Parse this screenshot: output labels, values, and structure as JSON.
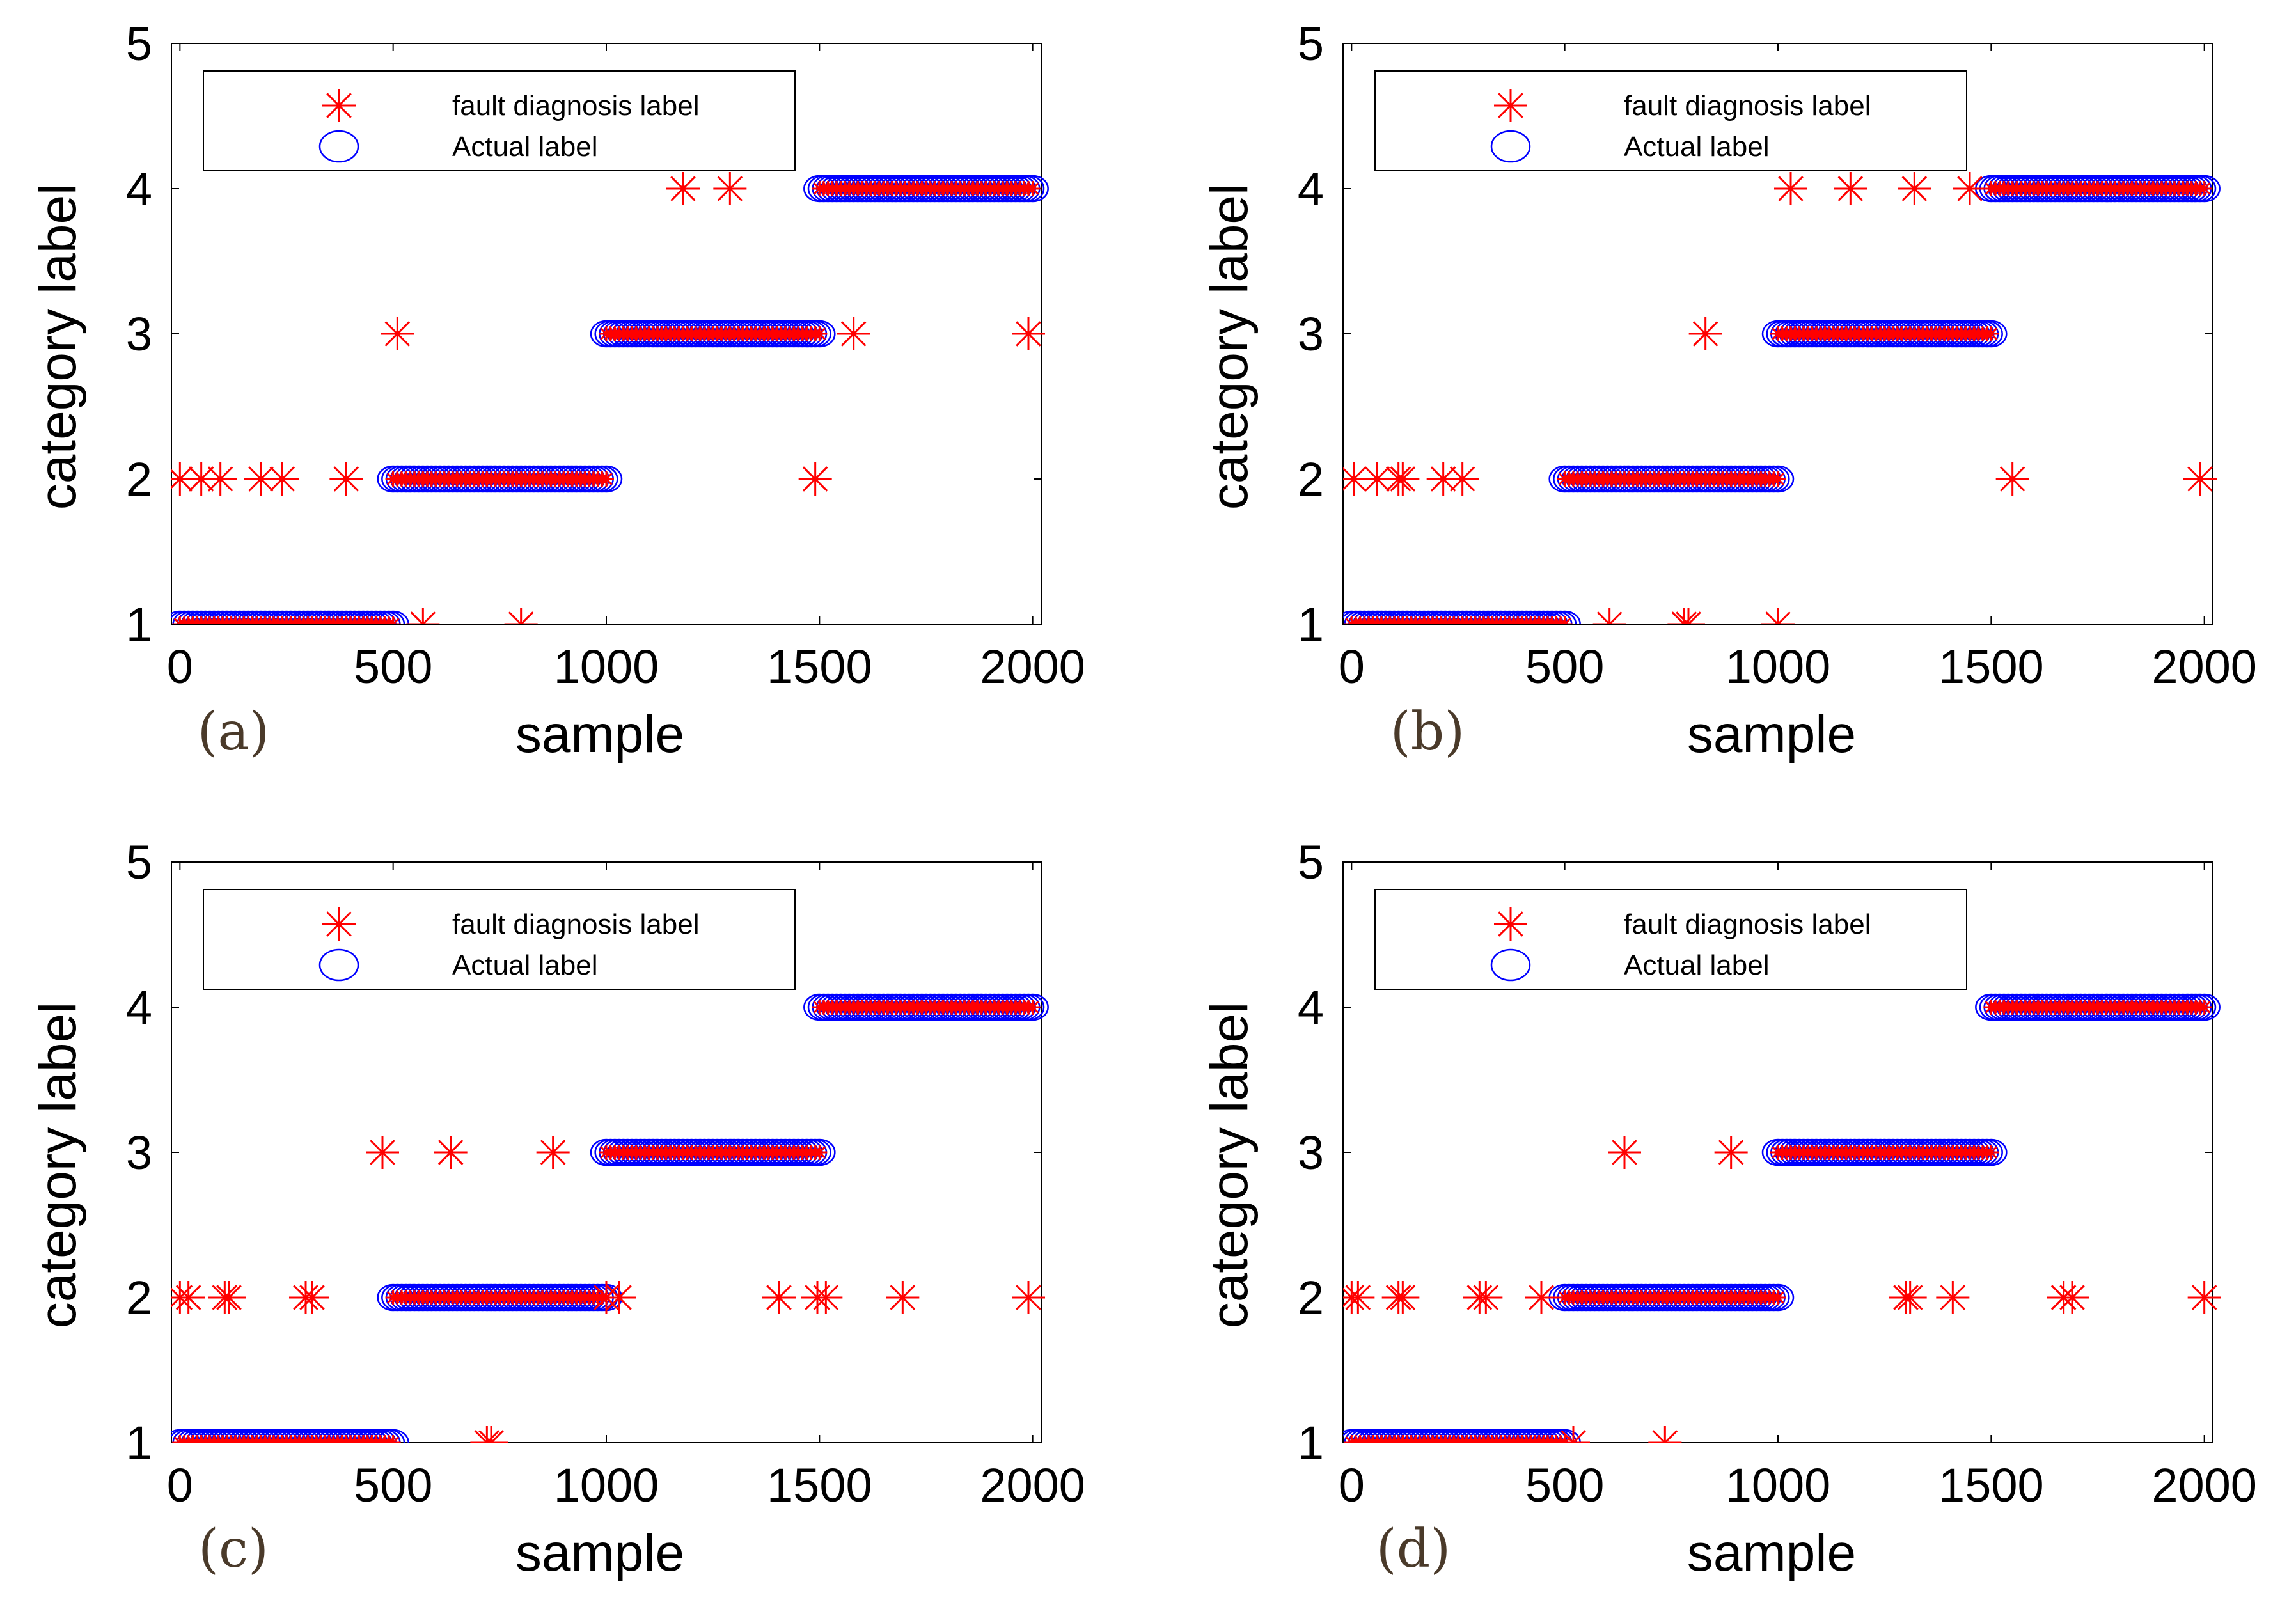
{
  "figure": {
    "panels": [
      "(a)",
      "(b)",
      "(c)",
      "(d)"
    ],
    "marker_colors": {
      "fault": "#ff0000",
      "actual": "#0000ff"
    }
  },
  "chart_data": [
    {
      "type": "scatter",
      "panel_label": "(a)",
      "xlabel": "sample",
      "ylabel": "category label",
      "xlim": [
        -20,
        2020
      ],
      "ylim": [
        1,
        5
      ],
      "xticks": [
        0,
        500,
        1000,
        1500,
        2000
      ],
      "yticks": [
        1,
        2,
        3,
        4,
        5
      ],
      "legend": {
        "position": "top-left",
        "entries": [
          "fault diagnosis label",
          "Actual label"
        ]
      },
      "actual_segments": [
        {
          "from": 0,
          "to": 500,
          "label": 1
        },
        {
          "from": 500,
          "to": 1000,
          "label": 2
        },
        {
          "from": 1000,
          "to": 1500,
          "label": 3
        },
        {
          "from": 1500,
          "to": 2000,
          "label": 4
        }
      ],
      "misclassified": [
        [
          0,
          2
        ],
        [
          50,
          2
        ],
        [
          95,
          2
        ],
        [
          190,
          2
        ],
        [
          240,
          2
        ],
        [
          390,
          2
        ],
        [
          510,
          3
        ],
        [
          570,
          1
        ],
        [
          800,
          1
        ],
        [
          1180,
          4
        ],
        [
          1290,
          4
        ],
        [
          1490,
          2
        ],
        [
          1580,
          3
        ],
        [
          1990,
          3
        ]
      ]
    },
    {
      "type": "scatter",
      "panel_label": "(b)",
      "xlabel": "sample",
      "ylabel": "category label",
      "xlim": [
        -20,
        2020
      ],
      "ylim": [
        1,
        5
      ],
      "xticks": [
        0,
        500,
        1000,
        1500,
        2000
      ],
      "yticks": [
        1,
        2,
        3,
        4,
        5
      ],
      "legend": {
        "position": "top-left",
        "entries": [
          "fault diagnosis label",
          "Actual label"
        ]
      },
      "actual_segments": [
        {
          "from": 0,
          "to": 500,
          "label": 1
        },
        {
          "from": 500,
          "to": 1000,
          "label": 2
        },
        {
          "from": 1000,
          "to": 1500,
          "label": 3
        },
        {
          "from": 1500,
          "to": 2000,
          "label": 4
        }
      ],
      "misclassified": [
        [
          5,
          2
        ],
        [
          60,
          2
        ],
        [
          110,
          2
        ],
        [
          120,
          2
        ],
        [
          215,
          2
        ],
        [
          260,
          2
        ],
        [
          605,
          1
        ],
        [
          780,
          1
        ],
        [
          790,
          1
        ],
        [
          830,
          3
        ],
        [
          1000,
          1
        ],
        [
          1030,
          4
        ],
        [
          1170,
          4
        ],
        [
          1320,
          4
        ],
        [
          1450,
          4
        ],
        [
          1550,
          2
        ],
        [
          1990,
          2
        ]
      ]
    },
    {
      "type": "scatter",
      "panel_label": "(c)",
      "xlabel": "sample",
      "ylabel": "category label",
      "xlim": [
        -20,
        2020
      ],
      "ylim": [
        1,
        5
      ],
      "xticks": [
        0,
        500,
        1000,
        1500,
        2000
      ],
      "yticks": [
        1,
        2,
        3,
        4,
        5
      ],
      "legend": {
        "position": "top-left",
        "entries": [
          "fault diagnosis label",
          "Actual label"
        ]
      },
      "actual_segments": [
        {
          "from": 0,
          "to": 500,
          "label": 1
        },
        {
          "from": 500,
          "to": 1000,
          "label": 2
        },
        {
          "from": 1000,
          "to": 1500,
          "label": 3
        },
        {
          "from": 1500,
          "to": 2000,
          "label": 4
        }
      ],
      "misclassified": [
        [
          0,
          2
        ],
        [
          20,
          2
        ],
        [
          105,
          2
        ],
        [
          115,
          2
        ],
        [
          295,
          2
        ],
        [
          310,
          2
        ],
        [
          475,
          3
        ],
        [
          635,
          3
        ],
        [
          720,
          1
        ],
        [
          730,
          1
        ],
        [
          875,
          3
        ],
        [
          1000,
          2
        ],
        [
          1030,
          2
        ],
        [
          1405,
          2
        ],
        [
          1495,
          2
        ],
        [
          1515,
          2
        ],
        [
          1695,
          2
        ],
        [
          1990,
          2
        ]
      ]
    },
    {
      "type": "scatter",
      "panel_label": "(d)",
      "xlabel": "sample",
      "ylabel": "category label",
      "xlim": [
        -20,
        2020
      ],
      "ylim": [
        1,
        5
      ],
      "xticks": [
        0,
        500,
        1000,
        1500,
        2000
      ],
      "yticks": [
        1,
        2,
        3,
        4,
        5
      ],
      "legend": {
        "position": "top-left",
        "entries": [
          "fault diagnosis label",
          "Actual label"
        ]
      },
      "actual_segments": [
        {
          "from": 0,
          "to": 500,
          "label": 1
        },
        {
          "from": 500,
          "to": 1000,
          "label": 2
        },
        {
          "from": 1000,
          "to": 1500,
          "label": 3
        },
        {
          "from": 1500,
          "to": 2000,
          "label": 4
        }
      ],
      "misclassified": [
        [
          0,
          2
        ],
        [
          15,
          2
        ],
        [
          110,
          2
        ],
        [
          120,
          2
        ],
        [
          300,
          2
        ],
        [
          315,
          2
        ],
        [
          445,
          2
        ],
        [
          520,
          1
        ],
        [
          640,
          3
        ],
        [
          735,
          1
        ],
        [
          890,
          3
        ],
        [
          1300,
          2
        ],
        [
          1310,
          2
        ],
        [
          1410,
          2
        ],
        [
          1670,
          2
        ],
        [
          1690,
          2
        ],
        [
          2000,
          2
        ]
      ]
    }
  ]
}
